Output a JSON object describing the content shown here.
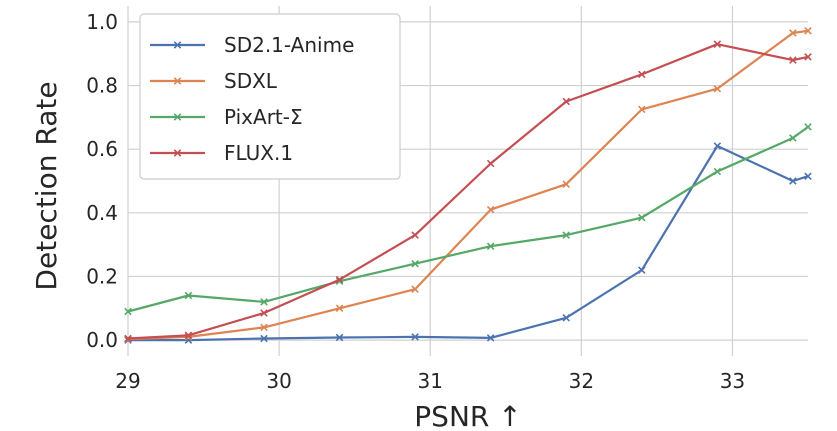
{
  "chart_data": {
    "type": "line",
    "xlabel": "PSNR ↑",
    "ylabel": "Detection Rate",
    "xlim": [
      29,
      33.5
    ],
    "ylim": [
      -0.05,
      1.05
    ],
    "xticks": [
      29,
      30,
      31,
      32,
      33
    ],
    "xtick_labels": [
      "29",
      "30",
      "31",
      "32",
      "33"
    ],
    "yticks": [
      0.0,
      0.2,
      0.4,
      0.6,
      0.8,
      1.0
    ],
    "ytick_labels": [
      "0.0",
      "0.2",
      "0.4",
      "0.6",
      "0.8",
      "1.0"
    ],
    "grid": true,
    "legend_position": "top-left",
    "marker": "x",
    "series": [
      {
        "name": "SD2.1-Anime",
        "color": "#4c72b0",
        "x": [
          29.0,
          29.4,
          29.9,
          30.4,
          30.9,
          31.4,
          31.9,
          32.4,
          32.9,
          33.4,
          33.5
        ],
        "y": [
          0.0,
          0.0,
          0.005,
          0.008,
          0.01,
          0.007,
          0.07,
          0.22,
          0.61,
          0.5,
          0.515
        ]
      },
      {
        "name": "SDXL",
        "color": "#dd8452",
        "x": [
          29.0,
          29.4,
          29.9,
          30.4,
          30.9,
          31.4,
          31.9,
          32.4,
          32.9,
          33.4,
          33.5
        ],
        "y": [
          0.003,
          0.01,
          0.04,
          0.1,
          0.16,
          0.41,
          0.49,
          0.725,
          0.79,
          0.965,
          0.972
        ]
      },
      {
        "name": "PixArt-Σ",
        "color": "#55a868",
        "x": [
          29.0,
          29.4,
          29.9,
          30.4,
          30.9,
          31.4,
          31.9,
          32.4,
          32.9,
          33.4,
          33.5
        ],
        "y": [
          0.09,
          0.14,
          0.12,
          0.185,
          0.24,
          0.295,
          0.33,
          0.385,
          0.53,
          0.635,
          0.67
        ]
      },
      {
        "name": "FLUX.1",
        "color": "#c44e52",
        "x": [
          29.0,
          29.4,
          29.9,
          30.4,
          30.9,
          31.4,
          31.9,
          32.4,
          32.9,
          33.4,
          33.5
        ],
        "y": [
          0.005,
          0.015,
          0.085,
          0.19,
          0.33,
          0.555,
          0.75,
          0.835,
          0.93,
          0.88,
          0.89
        ]
      }
    ]
  }
}
